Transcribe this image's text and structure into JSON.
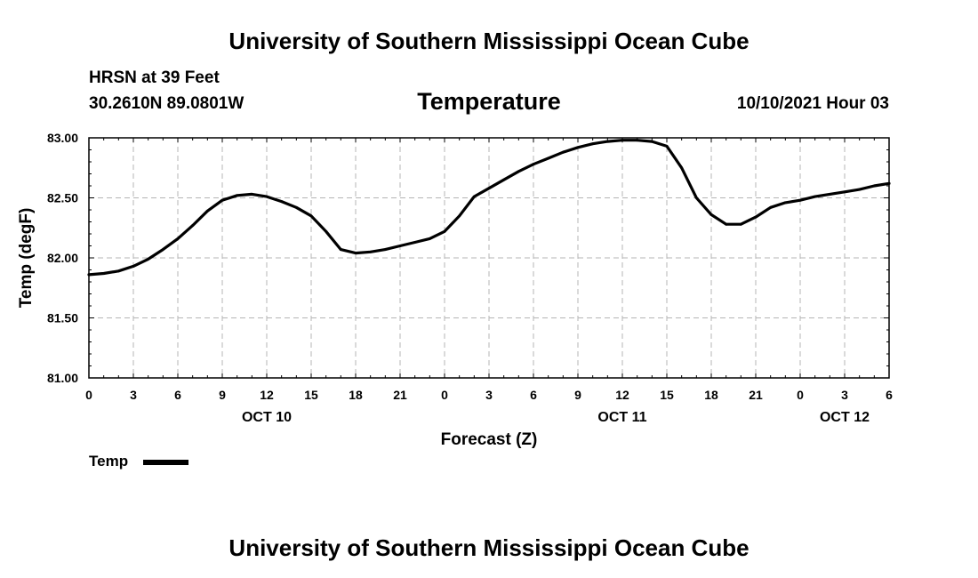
{
  "header": {
    "title": "University of Southern Mississippi Ocean Cube",
    "station": "HRSN at 39 Feet",
    "coordinates": "30.2610N  89.0801W",
    "datetime": "10/10/2021 Hour 03"
  },
  "footer": {
    "title": "University of Southern Mississippi Ocean Cube"
  },
  "chart_data": {
    "type": "line",
    "title": "Temperature",
    "xlabel": "Forecast (Z)",
    "ylabel": "Temp (degF)",
    "ylim": [
      81.0,
      83.0
    ],
    "xlim": [
      0,
      54
    ],
    "x_unit": "hours since 2021-10-10 00Z",
    "yticks": [
      "81.00",
      "81.50",
      "82.00",
      "82.50",
      "83.00"
    ],
    "xticks": [
      "0",
      "3",
      "6",
      "9",
      "12",
      "15",
      "18",
      "21",
      "0",
      "3",
      "6",
      "9",
      "12",
      "15",
      "18",
      "21",
      "0",
      "3",
      "6"
    ],
    "day_labels": [
      {
        "label": "OCT 10",
        "hour": 12
      },
      {
        "label": "OCT 11",
        "hour": 36
      },
      {
        "label": "OCT 12",
        "hour": 51
      }
    ],
    "grid": true,
    "legend": "bottom-left",
    "series": [
      {
        "name": "Temp",
        "color": "#000000",
        "x": [
          0,
          1,
          2,
          3,
          4,
          5,
          6,
          7,
          8,
          9,
          10,
          11,
          12,
          13,
          14,
          15,
          16,
          17,
          18,
          19,
          20,
          21,
          22,
          23,
          24,
          25,
          26,
          27,
          28,
          29,
          30,
          31,
          32,
          33,
          34,
          35,
          36,
          37,
          38,
          39,
          40,
          41,
          42,
          43,
          44,
          45,
          46,
          47,
          48,
          49,
          50,
          51,
          52,
          53,
          54
        ],
        "values": [
          81.86,
          81.87,
          81.89,
          81.93,
          81.99,
          82.07,
          82.16,
          82.27,
          82.39,
          82.48,
          82.52,
          82.53,
          82.51,
          82.47,
          82.42,
          82.35,
          82.22,
          82.07,
          82.04,
          82.05,
          82.07,
          82.1,
          82.13,
          82.16,
          82.22,
          82.35,
          82.51,
          82.58,
          82.65,
          82.72,
          82.78,
          82.83,
          82.88,
          82.92,
          82.95,
          82.97,
          82.98,
          82.98,
          82.97,
          82.93,
          82.75,
          82.5,
          82.36,
          82.28,
          82.28,
          82.34,
          82.42,
          82.46,
          82.48,
          82.51,
          82.53,
          82.55,
          82.57,
          82.6,
          82.62
        ]
      }
    ]
  }
}
